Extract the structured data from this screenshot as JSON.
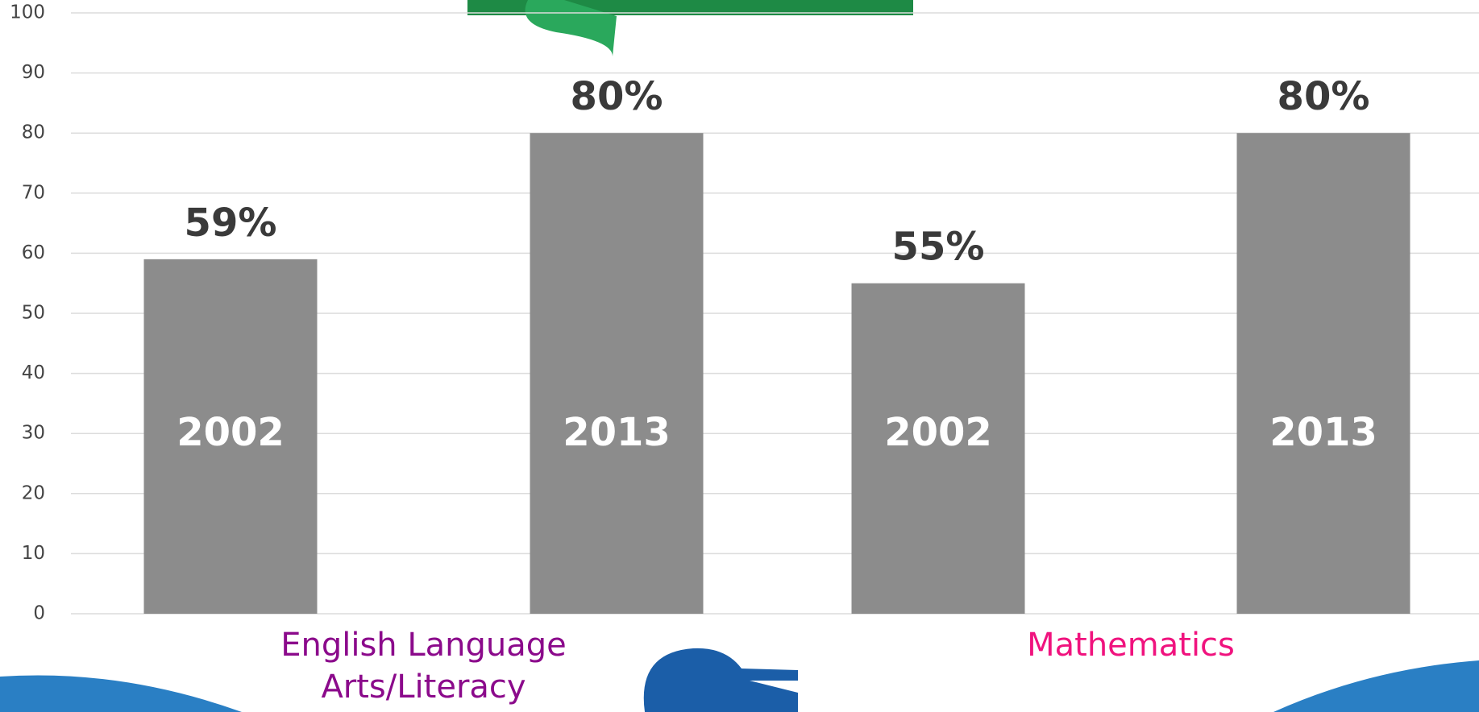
{
  "chart_data": {
    "type": "bar",
    "categories": [
      "2002",
      "2013",
      "2002",
      "2013"
    ],
    "values": [
      59,
      80,
      55,
      80
    ],
    "value_labels": [
      "59%",
      "80%",
      "55%",
      "80%"
    ],
    "color": "#8c8c8c",
    "groups": [
      {
        "label": "English Language Arts/Literacy",
        "color": "#8b0a8b"
      },
      {
        "label": "Mathematics",
        "color": "#f0137e"
      }
    ],
    "ylim": [
      0,
      100
    ],
    "yticks": [
      0,
      10,
      20,
      30,
      40,
      50,
      60,
      70,
      80,
      90,
      100
    ],
    "grid": true
  }
}
